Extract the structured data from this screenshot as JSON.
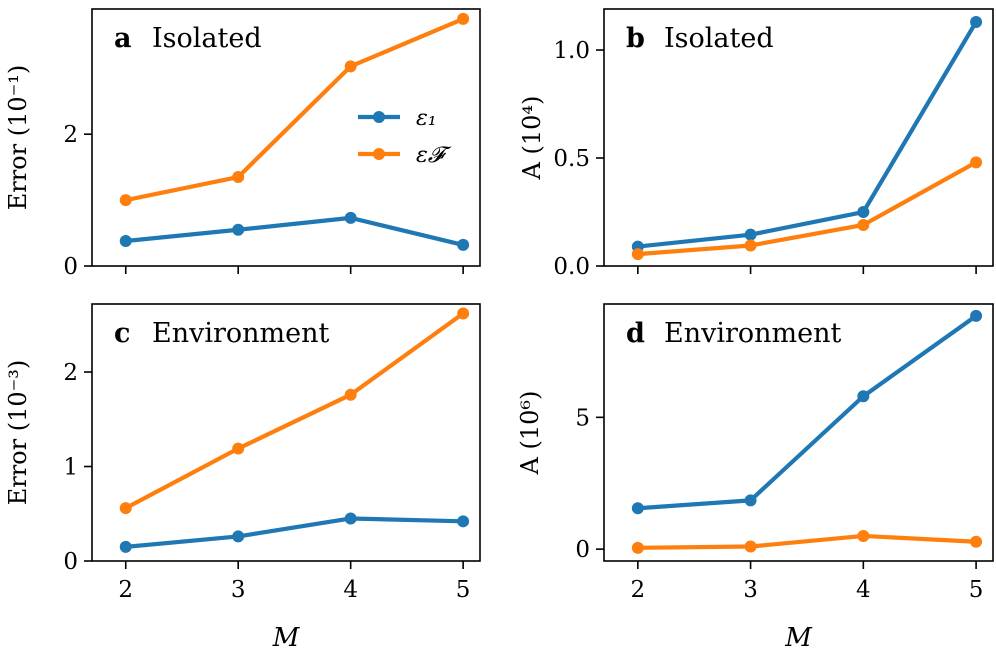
{
  "colors": {
    "eps1": "#1f77b4",
    "epsF": "#ff7f0e"
  },
  "legend": [
    {
      "label": "ε₁",
      "color": "#1f77b4"
    },
    {
      "label": "ε𝓕",
      "color": "#ff7f0e"
    }
  ],
  "chart_data": [
    {
      "id": "a",
      "type": "line",
      "letter": "a",
      "title": "Isolated",
      "ylabel": "Error (10⁻¹)",
      "xlabel": "",
      "x": [
        2,
        3,
        4,
        5
      ],
      "xticks": [
        "2",
        "3",
        "4",
        "5"
      ],
      "ylim": [
        0,
        3.9
      ],
      "yticks": [
        0,
        2
      ],
      "ytick_labels": [
        "0",
        "2"
      ],
      "series": [
        {
          "name": "ε₁",
          "color": "#1f77b4",
          "values": [
            0.38,
            0.55,
            0.73,
            0.32
          ]
        },
        {
          "name": "ε𝓕",
          "color": "#ff7f0e",
          "values": [
            1.0,
            1.35,
            3.03,
            3.75
          ]
        }
      ]
    },
    {
      "id": "b",
      "type": "line",
      "letter": "b",
      "title": "Isolated",
      "ylabel": "A (10⁴)",
      "xlabel": "",
      "x": [
        2,
        3,
        4,
        5
      ],
      "xticks": [
        "2",
        "3",
        "4",
        "5"
      ],
      "ylim": [
        0,
        1.19
      ],
      "yticks": [
        0.0,
        0.5,
        1.0
      ],
      "ytick_labels": [
        "0.0",
        "0.5",
        "1.0"
      ],
      "series": [
        {
          "name": "ε₁",
          "color": "#1f77b4",
          "values": [
            0.09,
            0.145,
            0.25,
            1.13
          ]
        },
        {
          "name": "ε𝓕",
          "color": "#ff7f0e",
          "values": [
            0.055,
            0.095,
            0.19,
            0.48
          ]
        }
      ]
    },
    {
      "id": "c",
      "type": "line",
      "letter": "c",
      "title": "Environment",
      "ylabel": "Error (10⁻³)",
      "xlabel": "M",
      "x": [
        2,
        3,
        4,
        5
      ],
      "xticks": [
        "2",
        "3",
        "4",
        "5"
      ],
      "ylim": [
        0,
        2.72
      ],
      "yticks": [
        0,
        1,
        2
      ],
      "ytick_labels": [
        "0",
        "1",
        "2"
      ],
      "series": [
        {
          "name": "ε₁",
          "color": "#1f77b4",
          "values": [
            0.15,
            0.26,
            0.45,
            0.42
          ]
        },
        {
          "name": "ε𝓕",
          "color": "#ff7f0e",
          "values": [
            0.56,
            1.19,
            1.76,
            2.62
          ]
        }
      ]
    },
    {
      "id": "d",
      "type": "line",
      "letter": "d",
      "title": "Environment",
      "ylabel": "A (10⁶)",
      "xlabel": "M",
      "x": [
        2,
        3,
        4,
        5
      ],
      "xticks": [
        "2",
        "3",
        "4",
        "5"
      ],
      "ylim": [
        -0.45,
        9.3
      ],
      "yticks": [
        0,
        5
      ],
      "ytick_labels": [
        "0",
        "5"
      ],
      "series": [
        {
          "name": "ε₁",
          "color": "#1f77b4",
          "values": [
            1.55,
            1.85,
            5.8,
            8.85
          ]
        },
        {
          "name": "ε𝓕",
          "color": "#ff7f0e",
          "values": [
            0.05,
            0.1,
            0.5,
            0.28
          ]
        }
      ]
    }
  ]
}
